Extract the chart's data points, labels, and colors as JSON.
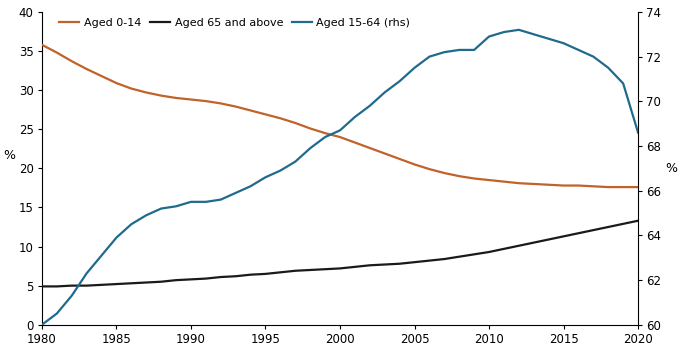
{
  "years": [
    1980,
    1981,
    1982,
    1983,
    1984,
    1985,
    1986,
    1987,
    1988,
    1989,
    1990,
    1991,
    1992,
    1993,
    1994,
    1995,
    1996,
    1997,
    1998,
    1999,
    2000,
    2001,
    2002,
    2003,
    2004,
    2005,
    2006,
    2007,
    2008,
    2009,
    2010,
    2011,
    2012,
    2013,
    2014,
    2015,
    2016,
    2017,
    2018,
    2019,
    2020
  ],
  "aged_0_14": [
    35.8,
    34.8,
    33.7,
    32.7,
    31.8,
    30.9,
    30.2,
    29.7,
    29.3,
    29.0,
    28.8,
    28.6,
    28.3,
    27.9,
    27.4,
    26.9,
    26.4,
    25.8,
    25.1,
    24.5,
    24.0,
    23.3,
    22.6,
    21.9,
    21.2,
    20.5,
    19.9,
    19.4,
    19.0,
    18.7,
    18.5,
    18.3,
    18.1,
    18.0,
    17.9,
    17.8,
    17.8,
    17.7,
    17.6,
    17.6,
    17.6
  ],
  "aged_65_plus": [
    4.9,
    4.9,
    5.0,
    5.0,
    5.1,
    5.2,
    5.3,
    5.4,
    5.5,
    5.7,
    5.8,
    5.9,
    6.1,
    6.2,
    6.4,
    6.5,
    6.7,
    6.9,
    7.0,
    7.1,
    7.2,
    7.4,
    7.6,
    7.7,
    7.8,
    8.0,
    8.2,
    8.4,
    8.7,
    9.0,
    9.3,
    9.7,
    10.1,
    10.5,
    10.9,
    11.3,
    11.7,
    12.1,
    12.5,
    12.9,
    13.3
  ],
  "aged_15_64_rhs": [
    60.0,
    60.5,
    61.3,
    62.3,
    63.1,
    63.9,
    64.5,
    64.9,
    65.2,
    65.3,
    65.5,
    65.5,
    65.6,
    65.9,
    66.2,
    66.6,
    66.9,
    67.3,
    67.9,
    68.4,
    68.7,
    69.3,
    69.8,
    70.4,
    70.9,
    71.5,
    72.0,
    72.2,
    72.3,
    72.3,
    72.9,
    73.1,
    73.2,
    73.0,
    72.8,
    72.6,
    72.3,
    72.0,
    71.5,
    70.8,
    68.6
  ],
  "color_0_14": "#C0622A",
  "color_65_plus": "#1A1A1A",
  "color_15_64": "#1F6B8C",
  "ylim_left": [
    0,
    40
  ],
  "ylim_right": [
    60,
    74
  ],
  "yticks_left": [
    0,
    5,
    10,
    15,
    20,
    25,
    30,
    35,
    40
  ],
  "yticks_right": [
    60,
    62,
    64,
    66,
    68,
    70,
    72,
    74
  ],
  "xticks": [
    1980,
    1985,
    1990,
    1995,
    2000,
    2005,
    2010,
    2015,
    2020
  ],
  "ylabel_left": "%",
  "ylabel_right": "%",
  "legend_labels": [
    "Aged 0-14",
    "Aged 65 and above",
    "Aged 15-64 (rhs)"
  ]
}
